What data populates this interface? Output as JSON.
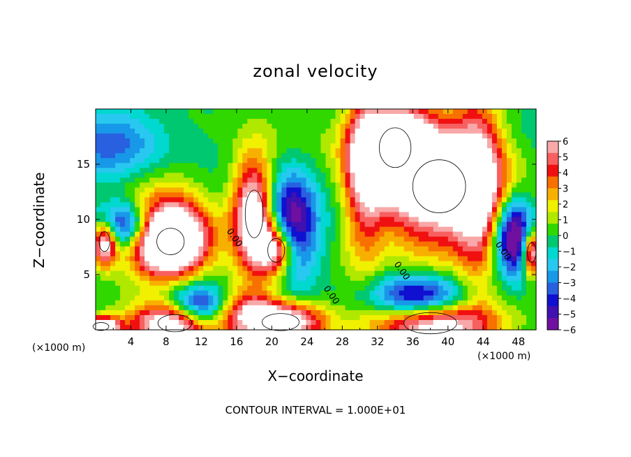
{
  "chart_data": {
    "type": "heatmap",
    "title": "zonal velocity",
    "xlabel": "X−coordinate",
    "ylabel": "Z−coordinate",
    "x_unit_left": "(×1000 m)",
    "x_unit_right": "(×1000 m)",
    "footer": "CONTOUR INTERVAL = 1.000E+01",
    "xlim": [
      0,
      50
    ],
    "ylim": [
      0,
      20
    ],
    "xticks": [
      4,
      8,
      12,
      16,
      20,
      24,
      28,
      32,
      36,
      40,
      44,
      48
    ],
    "yticks": [
      5,
      10,
      15
    ],
    "colorbar": {
      "range": [
        -6,
        6
      ],
      "ticks": [
        6,
        5,
        4,
        3,
        2,
        1,
        0,
        -1,
        -2,
        -3,
        -4,
        -5,
        -6
      ],
      "tick_labels": [
        "6",
        "5",
        "4",
        "3",
        "2",
        "1",
        "0",
        "−1",
        "−2",
        "−3",
        "−4",
        "−5",
        "−6"
      ],
      "colors": [
        "#f8a8a8",
        "#f86060",
        "#f01010",
        "#f87000",
        "#f8b000",
        "#f0f000",
        "#b0e800",
        "#30d800",
        "#00c870",
        "#00d8d0",
        "#28c8f0",
        "#1898e8",
        "#2860e0",
        "#1010d0",
        "#4010b0",
        "#7010a0"
      ]
    },
    "contour_labels": [
      {
        "text": "0.00",
        "x": 15.5,
        "y": 8.2
      },
      {
        "text": "0.00",
        "x": 26.5,
        "y": 3.0
      },
      {
        "text": "0.00",
        "x": 34.5,
        "y": 5.2
      },
      {
        "text": "0.00",
        "x": 46.0,
        "y": 7.0
      }
    ],
    "field_features": [
      {
        "kind": "white",
        "x": 18.0,
        "y": 10.5,
        "sx": 1.7,
        "sy": 3.6
      },
      {
        "kind": "white",
        "x": 20.5,
        "y": 7.2,
        "sx": 1.6,
        "sy": 1.8
      },
      {
        "kind": "white",
        "x": 39.0,
        "y": 13.0,
        "sx": 5.0,
        "sy": 4.0
      },
      {
        "kind": "white",
        "x": 34.0,
        "y": 16.5,
        "sx": 3.0,
        "sy": 3.0
      },
      {
        "kind": "white",
        "x": 8.5,
        "y": 8.0,
        "sx": 2.6,
        "sy": 2.0
      },
      {
        "kind": "white",
        "x": 9.0,
        "y": 0.6,
        "sx": 3.2,
        "sy": 1.3
      },
      {
        "kind": "white",
        "x": 21.0,
        "y": 0.7,
        "sx": 3.5,
        "sy": 1.3
      },
      {
        "kind": "white",
        "x": 38.0,
        "y": 0.6,
        "sx": 5.0,
        "sy": 1.6
      },
      {
        "kind": "white",
        "x": 1.0,
        "y": 8.0,
        "sx": 1.0,
        "sy": 1.5
      },
      {
        "kind": "white",
        "x": 49.5,
        "y": 7.0,
        "sx": 0.8,
        "sy": 1.5
      },
      {
        "kind": "white",
        "x": 0.6,
        "y": 0.3,
        "sx": 1.5,
        "sy": 0.6
      },
      {
        "kind": "strong-negative",
        "x": 22.0,
        "y": 9.0,
        "sx": 2.2,
        "sy": 3.5
      },
      {
        "kind": "strong-negative",
        "x": 37.0,
        "y": 2.8,
        "sx": 4.0,
        "sy": 1.5
      },
      {
        "kind": "strong-negative",
        "x": 47.5,
        "y": 8.5,
        "sx": 1.6,
        "sy": 2.5
      },
      {
        "kind": "strong-negative",
        "x": 12.0,
        "y": 2.0,
        "sx": 2.5,
        "sy": 1.4
      },
      {
        "kind": "strong-negative",
        "x": 3.0,
        "y": 9.5,
        "sx": 2.5,
        "sy": 1.5
      },
      {
        "kind": "positive-ridge",
        "x": 30.5,
        "y": 14.0,
        "sx": 1.6,
        "sy": 6.0
      },
      {
        "kind": "positive-ridge",
        "x": 43.5,
        "y": 13.0,
        "sx": 1.8,
        "sy": 6.5
      },
      {
        "kind": "positive-ridge",
        "x": 8.0,
        "y": 9.0,
        "sx": 4.0,
        "sy": 3.5
      },
      {
        "kind": "positive-ridge",
        "x": 16.0,
        "y": 2.0,
        "sx": 3.0,
        "sy": 1.5
      },
      {
        "kind": "negative-blob",
        "x": 2.5,
        "y": 17.0,
        "sx": 4.0,
        "sy": 2.5
      }
    ]
  }
}
